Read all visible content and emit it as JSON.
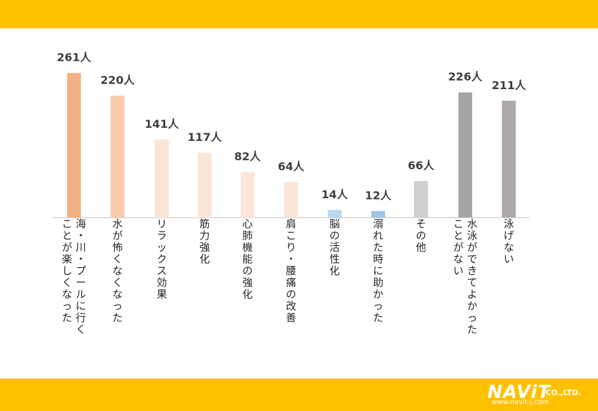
{
  "logo": {
    "main": "NAViT",
    "co": "CO.,LTD.",
    "url": "www.navit-j.com"
  },
  "colors": {
    "band": "#ffc000",
    "axis": "#bfbfbf",
    "value_label": "#404040"
  },
  "chart_data": {
    "type": "bar",
    "categories": [
      [
        "海・川・プールに行く",
        "ことが楽しくなった"
      ],
      [
        "水が怖くなくなった"
      ],
      [
        "リラックス効果"
      ],
      [
        "筋力強化"
      ],
      [
        "心肺機能の強化"
      ],
      [
        "肩こり・腰痛の改善"
      ],
      [
        "脳の活性化"
      ],
      [
        "溺れた時に助かった"
      ],
      [
        "その他"
      ],
      [
        "水泳ができてよかった",
        "ことがない"
      ],
      [
        "泳げない"
      ]
    ],
    "values": [
      261,
      220,
      141,
      117,
      82,
      64,
      14,
      12,
      66,
      226,
      211
    ],
    "value_labels": [
      "261人",
      "220人",
      "141人",
      "117人",
      "82人",
      "64人",
      "14人",
      "12人",
      "66人",
      "226人",
      "211人"
    ],
    "bar_colors": [
      "#f4b183",
      "#f8cbad",
      "#fbe5d6",
      "#fbe5d6",
      "#fbe5d6",
      "#fbe5d6",
      "#bdd7ee",
      "#9dc3e6",
      "#d0cece",
      "#a5a5a5",
      "#aeaaaa"
    ],
    "ylim": [
      0,
      280
    ],
    "grid": false,
    "title": "",
    "xlabel": "",
    "ylabel": ""
  }
}
